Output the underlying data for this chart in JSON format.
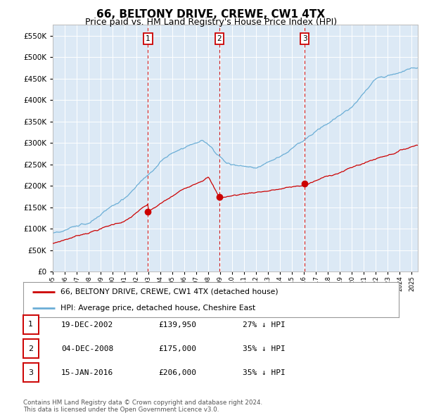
{
  "title": "66, BELTONY DRIVE, CREWE, CW1 4TX",
  "subtitle": "Price paid vs. HM Land Registry's House Price Index (HPI)",
  "ytick_values": [
    0,
    50000,
    100000,
    150000,
    200000,
    250000,
    300000,
    350000,
    400000,
    450000,
    500000,
    550000
  ],
  "ylim": [
    0,
    575000
  ],
  "xlim": [
    1995,
    2025.5
  ],
  "background_color": "#dce9f5",
  "sale_markers": [
    {
      "year": 2002.96,
      "price": 139950,
      "label": "1"
    },
    {
      "year": 2008.92,
      "price": 175000,
      "label": "2"
    },
    {
      "year": 2016.04,
      "price": 206000,
      "label": "3"
    }
  ],
  "vline_color": "#cc0000",
  "marker_box_color": "#cc0000",
  "hpi_line_color": "#6baed6",
  "sale_line_color": "#cc0000",
  "legend_entries": [
    "66, BELTONY DRIVE, CREWE, CW1 4TX (detached house)",
    "HPI: Average price, detached house, Cheshire East"
  ],
  "table_rows": [
    {
      "num": "1",
      "date": "19-DEC-2002",
      "price": "£139,950",
      "hpi": "27% ↓ HPI"
    },
    {
      "num": "2",
      "date": "04-DEC-2008",
      "price": "£175,000",
      "hpi": "35% ↓ HPI"
    },
    {
      "num": "3",
      "date": "15-JAN-2016",
      "price": "£206,000",
      "hpi": "35% ↓ HPI"
    }
  ],
  "footnote": "Contains HM Land Registry data © Crown copyright and database right 2024.\nThis data is licensed under the Open Government Licence v3.0.",
  "title_fontsize": 11,
  "subtitle_fontsize": 9
}
